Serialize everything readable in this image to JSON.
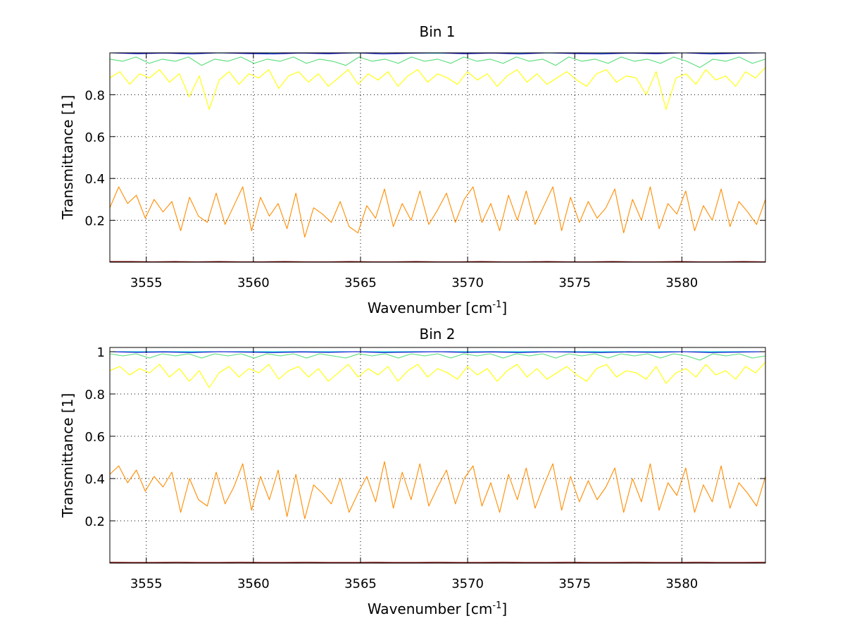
{
  "chart_data": [
    {
      "type": "line",
      "title": "Bin 1",
      "xlabel": "Wavenumber [cm",
      "xlabel_sup": "-1",
      "xlabel_end": "]",
      "ylabel": "Transmittance [1]",
      "xlim": [
        3553.3,
        3583.9
      ],
      "ylim": [
        0,
        1.0
      ],
      "grid": true,
      "xticks": [
        3555,
        3560,
        3565,
        3570,
        3575,
        3580
      ],
      "xtick_labels": [
        "3555",
        "3560",
        "3565",
        "3570",
        "3575",
        "3580"
      ],
      "yticks": [
        0.2,
        0.4,
        0.6,
        0.8
      ],
      "ytick_labels": [
        "0.2",
        "0.4",
        "0.6",
        "0.8"
      ],
      "series": [
        {
          "color": "#7f0000",
          "values": [
            0.003,
            0.003,
            0.002,
            0.003,
            0.002,
            0.003,
            0.002,
            0.002,
            0.003,
            0.002,
            0.002,
            0.003,
            0.002,
            0.002,
            0.003,
            0.002,
            0.002,
            0.003,
            0.002,
            0.002,
            0.003,
            0.002,
            0.002,
            0.003,
            0.002,
            0.002,
            0.003,
            0.002,
            0.002,
            0.003,
            0.002
          ]
        },
        {
          "color": "#ff8c00",
          "values": [
            0.26,
            0.36,
            0.28,
            0.32,
            0.21,
            0.3,
            0.24,
            0.29,
            0.15,
            0.31,
            0.22,
            0.19,
            0.33,
            0.18,
            0.27,
            0.36,
            0.15,
            0.31,
            0.22,
            0.28,
            0.16,
            0.33,
            0.12,
            0.26,
            0.23,
            0.19,
            0.29,
            0.17,
            0.14,
            0.27,
            0.21,
            0.35,
            0.17,
            0.28,
            0.2,
            0.34,
            0.18,
            0.25,
            0.33,
            0.19,
            0.3,
            0.36,
            0.19,
            0.28,
            0.15,
            0.32,
            0.2,
            0.34,
            0.18,
            0.27,
            0.36,
            0.15,
            0.31,
            0.19,
            0.29,
            0.21,
            0.26,
            0.35,
            0.14,
            0.3,
            0.2,
            0.36,
            0.16,
            0.28,
            0.23,
            0.34,
            0.15,
            0.27,
            0.2,
            0.35,
            0.17,
            0.29,
            0.24,
            0.18,
            0.3
          ]
        },
        {
          "color": "#ffff00",
          "values": [
            0.88,
            0.91,
            0.85,
            0.9,
            0.88,
            0.92,
            0.86,
            0.9,
            0.79,
            0.89,
            0.73,
            0.87,
            0.91,
            0.85,
            0.9,
            0.88,
            0.92,
            0.83,
            0.89,
            0.91,
            0.86,
            0.9,
            0.84,
            0.88,
            0.92,
            0.85,
            0.9,
            0.87,
            0.91,
            0.84,
            0.89,
            0.92,
            0.86,
            0.9,
            0.88,
            0.85,
            0.91,
            0.87,
            0.9,
            0.84,
            0.89,
            0.92,
            0.86,
            0.9,
            0.85,
            0.88,
            0.91,
            0.87,
            0.84,
            0.9,
            0.92,
            0.86,
            0.89,
            0.88,
            0.8,
            0.91,
            0.73,
            0.88,
            0.9,
            0.85,
            0.92,
            0.87,
            0.89,
            0.84,
            0.91,
            0.88,
            0.93
          ]
        },
        {
          "color": "#55dd77",
          "values": [
            0.97,
            0.96,
            0.98,
            0.95,
            0.97,
            0.96,
            0.98,
            0.94,
            0.97,
            0.96,
            0.98,
            0.95,
            0.97,
            0.96,
            0.98,
            0.95,
            0.97,
            0.96,
            0.94,
            0.98,
            0.96,
            0.97,
            0.95,
            0.98,
            0.96,
            0.97,
            0.95,
            0.98,
            0.96,
            0.97,
            0.95,
            0.98,
            0.96,
            0.97,
            0.94,
            0.98,
            0.96,
            0.97,
            0.95,
            0.98,
            0.96,
            0.97,
            0.95,
            0.98,
            0.96,
            0.93,
            0.97,
            0.96,
            0.98,
            0.95,
            0.97
          ]
        },
        {
          "color": "#00d8d8",
          "values": [
            1.0,
            0.999,
            1.0,
            0.998,
            1.0,
            0.999,
            1.0,
            0.998,
            1.0,
            0.999,
            1.0,
            0.998,
            1.0,
            0.999,
            1.0
          ]
        },
        {
          "color": "#0000cc",
          "values": [
            1.0,
            0.996,
            0.999,
            0.995,
            1.0,
            0.997,
            0.995,
            0.999,
            0.996,
            1.0,
            0.995,
            0.998,
            1.0,
            0.996,
            0.999,
            0.995,
            1.0,
            0.997,
            0.995,
            0.999,
            0.996,
            1.0,
            0.995,
            0.998,
            1.0
          ]
        }
      ]
    },
    {
      "type": "line",
      "title": "Bin 2",
      "xlabel": "Wavenumber [cm",
      "xlabel_sup": "-1",
      "xlabel_end": "]",
      "ylabel": "Transmittance [1]",
      "xlim": [
        3553.3,
        3583.9
      ],
      "ylim": [
        0,
        1.02
      ],
      "grid": true,
      "xticks": [
        3555,
        3560,
        3565,
        3570,
        3575,
        3580
      ],
      "xtick_labels": [
        "3555",
        "3560",
        "3565",
        "3570",
        "3575",
        "3580"
      ],
      "yticks": [
        0.2,
        0.4,
        0.6,
        0.8,
        1.0
      ],
      "ytick_labels": [
        "0.2",
        "0.4",
        "0.6",
        "0.8",
        "1"
      ],
      "series": [
        {
          "color": "#7f0000",
          "values": [
            0.004,
            0.003,
            0.003,
            0.004,
            0.003,
            0.003,
            0.004,
            0.003,
            0.003,
            0.004,
            0.003,
            0.003,
            0.004,
            0.003,
            0.003,
            0.004,
            0.003,
            0.003,
            0.004,
            0.003,
            0.003,
            0.004,
            0.003,
            0.003,
            0.004,
            0.003,
            0.003,
            0.004,
            0.003,
            0.003,
            0.004
          ]
        },
        {
          "color": "#ff8c00",
          "values": [
            0.42,
            0.46,
            0.38,
            0.44,
            0.34,
            0.41,
            0.36,
            0.43,
            0.24,
            0.4,
            0.3,
            0.27,
            0.43,
            0.28,
            0.36,
            0.47,
            0.25,
            0.41,
            0.3,
            0.44,
            0.22,
            0.42,
            0.21,
            0.37,
            0.33,
            0.28,
            0.4,
            0.24,
            0.33,
            0.41,
            0.29,
            0.48,
            0.26,
            0.43,
            0.3,
            0.47,
            0.27,
            0.36,
            0.44,
            0.28,
            0.4,
            0.46,
            0.27,
            0.38,
            0.24,
            0.42,
            0.3,
            0.45,
            0.26,
            0.37,
            0.47,
            0.25,
            0.41,
            0.29,
            0.39,
            0.3,
            0.36,
            0.45,
            0.24,
            0.4,
            0.29,
            0.47,
            0.25,
            0.38,
            0.32,
            0.45,
            0.24,
            0.37,
            0.29,
            0.46,
            0.26,
            0.38,
            0.33,
            0.27,
            0.41
          ]
        },
        {
          "color": "#ffff00",
          "values": [
            0.91,
            0.93,
            0.89,
            0.92,
            0.9,
            0.94,
            0.88,
            0.92,
            0.86,
            0.91,
            0.83,
            0.9,
            0.93,
            0.88,
            0.92,
            0.9,
            0.94,
            0.87,
            0.91,
            0.93,
            0.88,
            0.92,
            0.86,
            0.9,
            0.94,
            0.88,
            0.92,
            0.89,
            0.93,
            0.86,
            0.91,
            0.94,
            0.88,
            0.92,
            0.9,
            0.87,
            0.93,
            0.89,
            0.92,
            0.86,
            0.91,
            0.94,
            0.88,
            0.92,
            0.87,
            0.9,
            0.93,
            0.89,
            0.86,
            0.92,
            0.94,
            0.88,
            0.91,
            0.9,
            0.87,
            0.93,
            0.85,
            0.9,
            0.92,
            0.88,
            0.94,
            0.89,
            0.91,
            0.87,
            0.93,
            0.9,
            0.95
          ]
        },
        {
          "color": "#55dd77",
          "values": [
            0.99,
            0.98,
            0.99,
            0.97,
            0.99,
            0.98,
            0.99,
            0.97,
            0.99,
            0.98,
            0.99,
            0.97,
            0.99,
            0.98,
            0.99,
            0.97,
            0.99,
            0.98,
            0.97,
            0.99,
            0.98,
            0.99,
            0.97,
            0.99,
            0.98,
            0.99,
            0.97,
            0.99,
            0.98,
            0.99,
            0.97,
            0.99,
            0.98,
            0.99,
            0.97,
            0.99,
            0.98,
            0.99,
            0.97,
            0.99,
            0.98,
            0.99,
            0.97,
            0.99,
            0.98,
            0.96,
            0.99,
            0.98,
            0.99,
            0.97,
            0.98
          ]
        },
        {
          "color": "#00d8d8",
          "values": [
            1.0,
            1.0,
            1.0,
            1.0,
            1.0,
            1.0,
            1.0,
            1.0,
            1.0,
            1.0,
            1.0,
            1.0,
            1.0,
            1.0,
            1.0
          ]
        },
        {
          "color": "#0000cc",
          "values": [
            1.0,
            0.997,
            0.999,
            0.996,
            1.0,
            0.998,
            0.996,
            0.999,
            0.997,
            1.0,
            0.996,
            0.998,
            1.0,
            0.997,
            0.999,
            0.996,
            1.0,
            0.998,
            0.996,
            0.999,
            0.997,
            1.0,
            0.996,
            0.998,
            1.0
          ]
        }
      ]
    }
  ]
}
